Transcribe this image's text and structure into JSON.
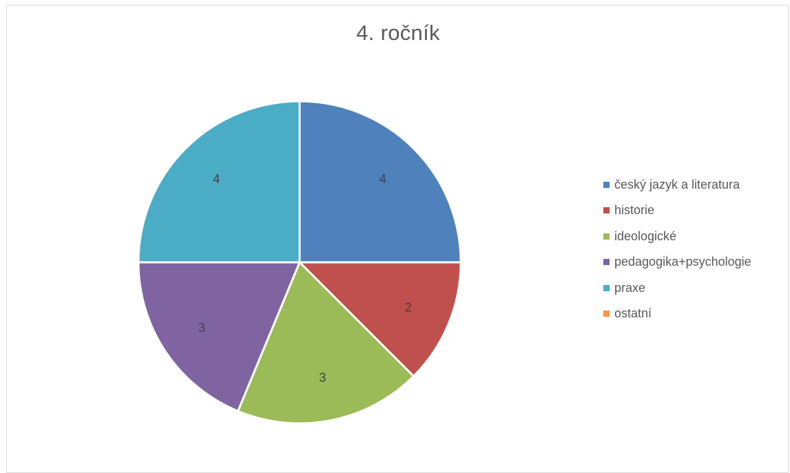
{
  "chart_data": {
    "type": "pie",
    "title": "4. ročník",
    "categories": [
      "český jazyk a literatura",
      "historie",
      "ideologické",
      "pedagogika+psychologie",
      "praxe",
      "ostatní"
    ],
    "values": [
      4,
      2,
      3,
      3,
      4,
      0
    ],
    "data_labels": [
      "4",
      "2",
      "3",
      "3",
      "4",
      ""
    ],
    "colors": [
      "#4F81BD",
      "#C0504D",
      "#9BBB59",
      "#8064A2",
      "#4BACC6",
      "#F79646"
    ],
    "legend_position": "right"
  }
}
